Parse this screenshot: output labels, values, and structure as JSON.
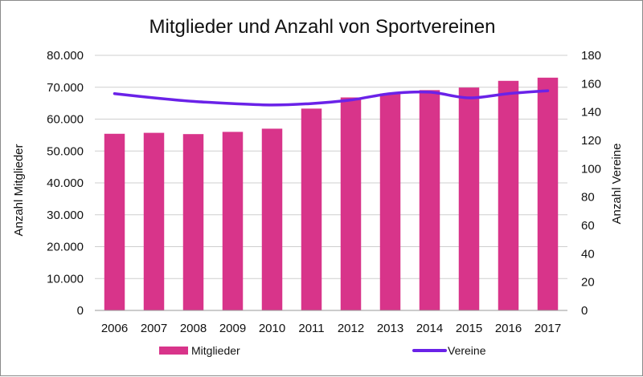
{
  "chart_data": {
    "type": "bar",
    "title": "Mitglieder und Anzahl von Sportvereinen",
    "categories": [
      "2006",
      "2007",
      "2008",
      "2009",
      "2010",
      "2011",
      "2012",
      "2013",
      "2014",
      "2015",
      "2016",
      "2017"
    ],
    "series": [
      {
        "name": "Mitglieder",
        "type": "bar",
        "axis": "left",
        "color": "#d8348a",
        "values": [
          55400,
          55700,
          55300,
          56000,
          57000,
          63300,
          66800,
          68000,
          69100,
          69900,
          72000,
          73000
        ]
      },
      {
        "name": "Vereine",
        "type": "line",
        "axis": "right",
        "color": "#6a22e8",
        "values": [
          153,
          150,
          147.5,
          146,
          145,
          146,
          148.5,
          153,
          154,
          150,
          153,
          155
        ]
      }
    ],
    "ylabel": "Anzahl Mitglieder",
    "ylim": [
      0,
      80000
    ],
    "yticks": [
      "0",
      "10.000",
      "20.000",
      "30.000",
      "40.000",
      "50.000",
      "60.000",
      "70.000",
      "80.000"
    ],
    "y2label": "Anzahl Vereine",
    "y2lim": [
      0,
      180
    ],
    "y2ticks": [
      "0",
      "20",
      "40",
      "60",
      "80",
      "100",
      "120",
      "140",
      "160",
      "180"
    ],
    "grid": true,
    "legend": "bottom"
  }
}
